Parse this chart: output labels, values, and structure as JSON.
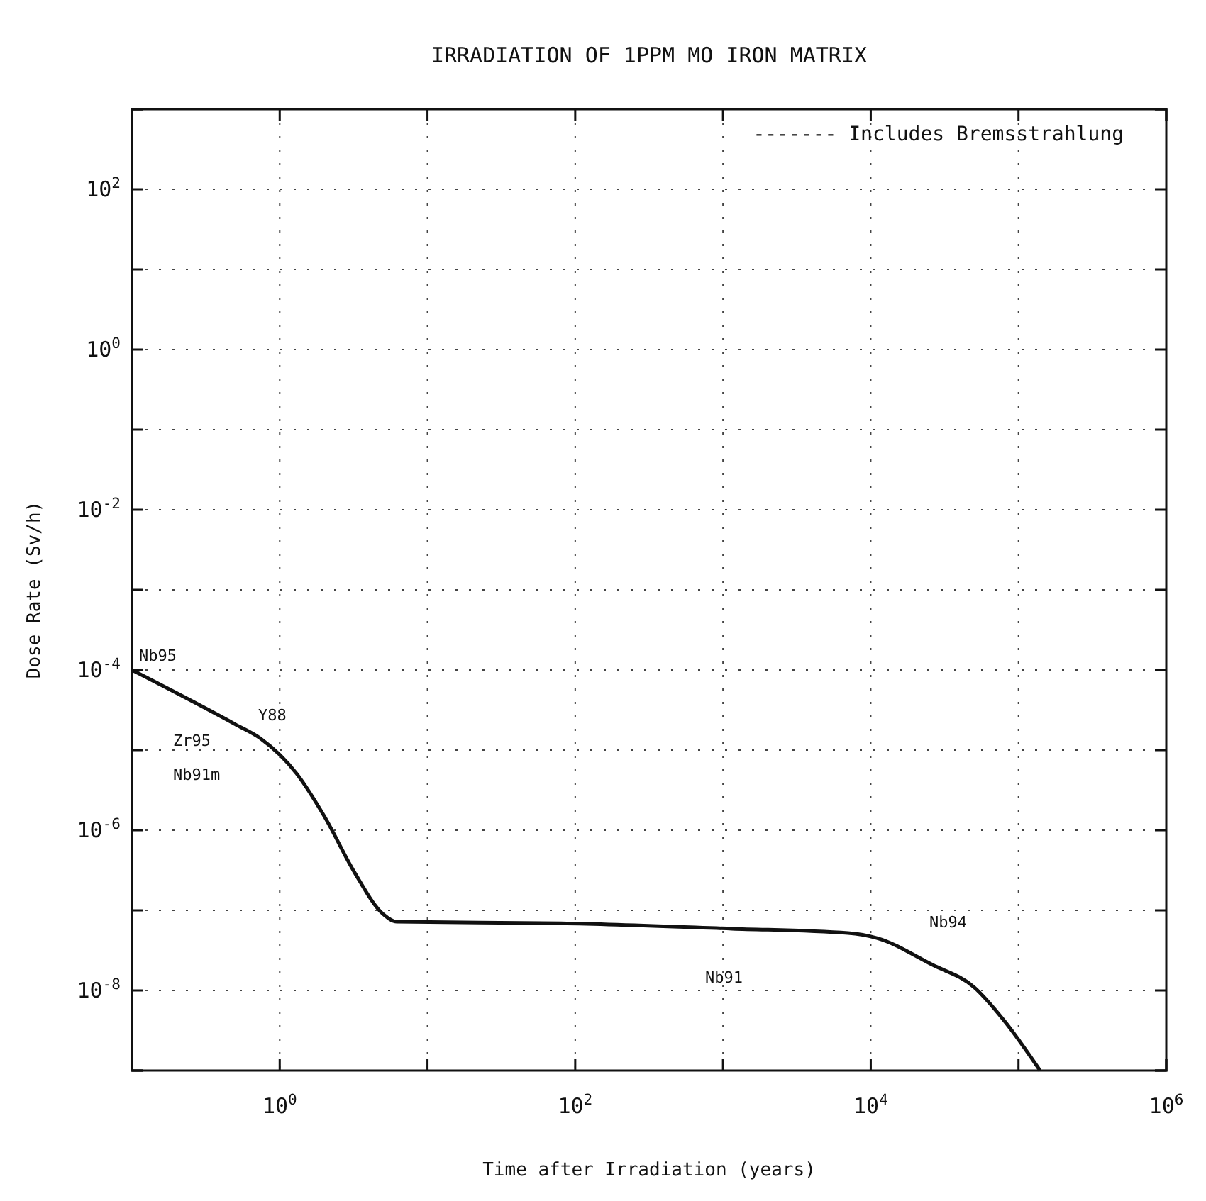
{
  "chart_data": {
    "type": "line",
    "title": "IRRADIATION OF 1PPM MO IRON MATRIX",
    "xlabel": "Time after Irradiation (years)",
    "ylabel": "Dose Rate (Sv/h)",
    "log": "xy",
    "grid": true,
    "line_style": "solid",
    "marker": "none",
    "xlim": [
      0.1,
      1000000
    ],
    "ylim": [
      1e-09,
      1000
    ],
    "xticks": [
      {
        "value": 0.1,
        "label": null
      },
      {
        "value": 1,
        "label": "10$^{0}$"
      },
      {
        "value": 10,
        "label": null
      },
      {
        "value": 100,
        "label": "10$^{2}$"
      },
      {
        "value": 1000,
        "label": null
      },
      {
        "value": 10000,
        "label": "10$^{4}$"
      },
      {
        "value": 100000,
        "label": null
      },
      {
        "value": 1000000,
        "label": "10$^{6}$"
      }
    ],
    "yticks": [
      {
        "value": 1e-09,
        "label": null
      },
      {
        "value": 1e-08,
        "label": "10$^{-8}$"
      },
      {
        "value": 1e-07,
        "label": null
      },
      {
        "value": 1e-06,
        "label": "10$^{-6}$"
      },
      {
        "value": 1e-05,
        "label": null
      },
      {
        "value": 0.0001,
        "label": "10$^{-4}$"
      },
      {
        "value": 0.001,
        "label": null
      },
      {
        "value": 0.01,
        "label": "10$^{-2}$"
      },
      {
        "value": 0.1,
        "label": null
      },
      {
        "value": 1,
        "label": "10$^{0}$"
      },
      {
        "value": 10,
        "label": null
      },
      {
        "value": 100,
        "label": "10$^{2}$"
      },
      {
        "value": 1000,
        "label": null
      }
    ],
    "series": [
      {
        "color": "#111111",
        "x": [
          0.1,
          0.5,
          0.74,
          1.3,
          2.0,
          3.2,
          5.0,
          6.2,
          80,
          1150,
          7000,
          11000,
          26000,
          50000,
          80000,
          140000
        ],
        "values": [
          0.0001,
          2.1e-05,
          1.4e-05,
          5.1e-06,
          1.5e-06,
          3e-07,
          9e-08,
          7.2e-08,
          6.9e-08,
          5.9e-08,
          5.2e-08,
          4.5e-08,
          2.1e-08,
          1.1e-08,
          4.2e-09,
          1e-09
        ]
      }
    ],
    "annotations": [
      "------- Includes Bremsstrahlung",
      "Nb95",
      "Zr95",
      "Y88",
      "Nb91m",
      "Nb94",
      "Nb91"
    ]
  }
}
